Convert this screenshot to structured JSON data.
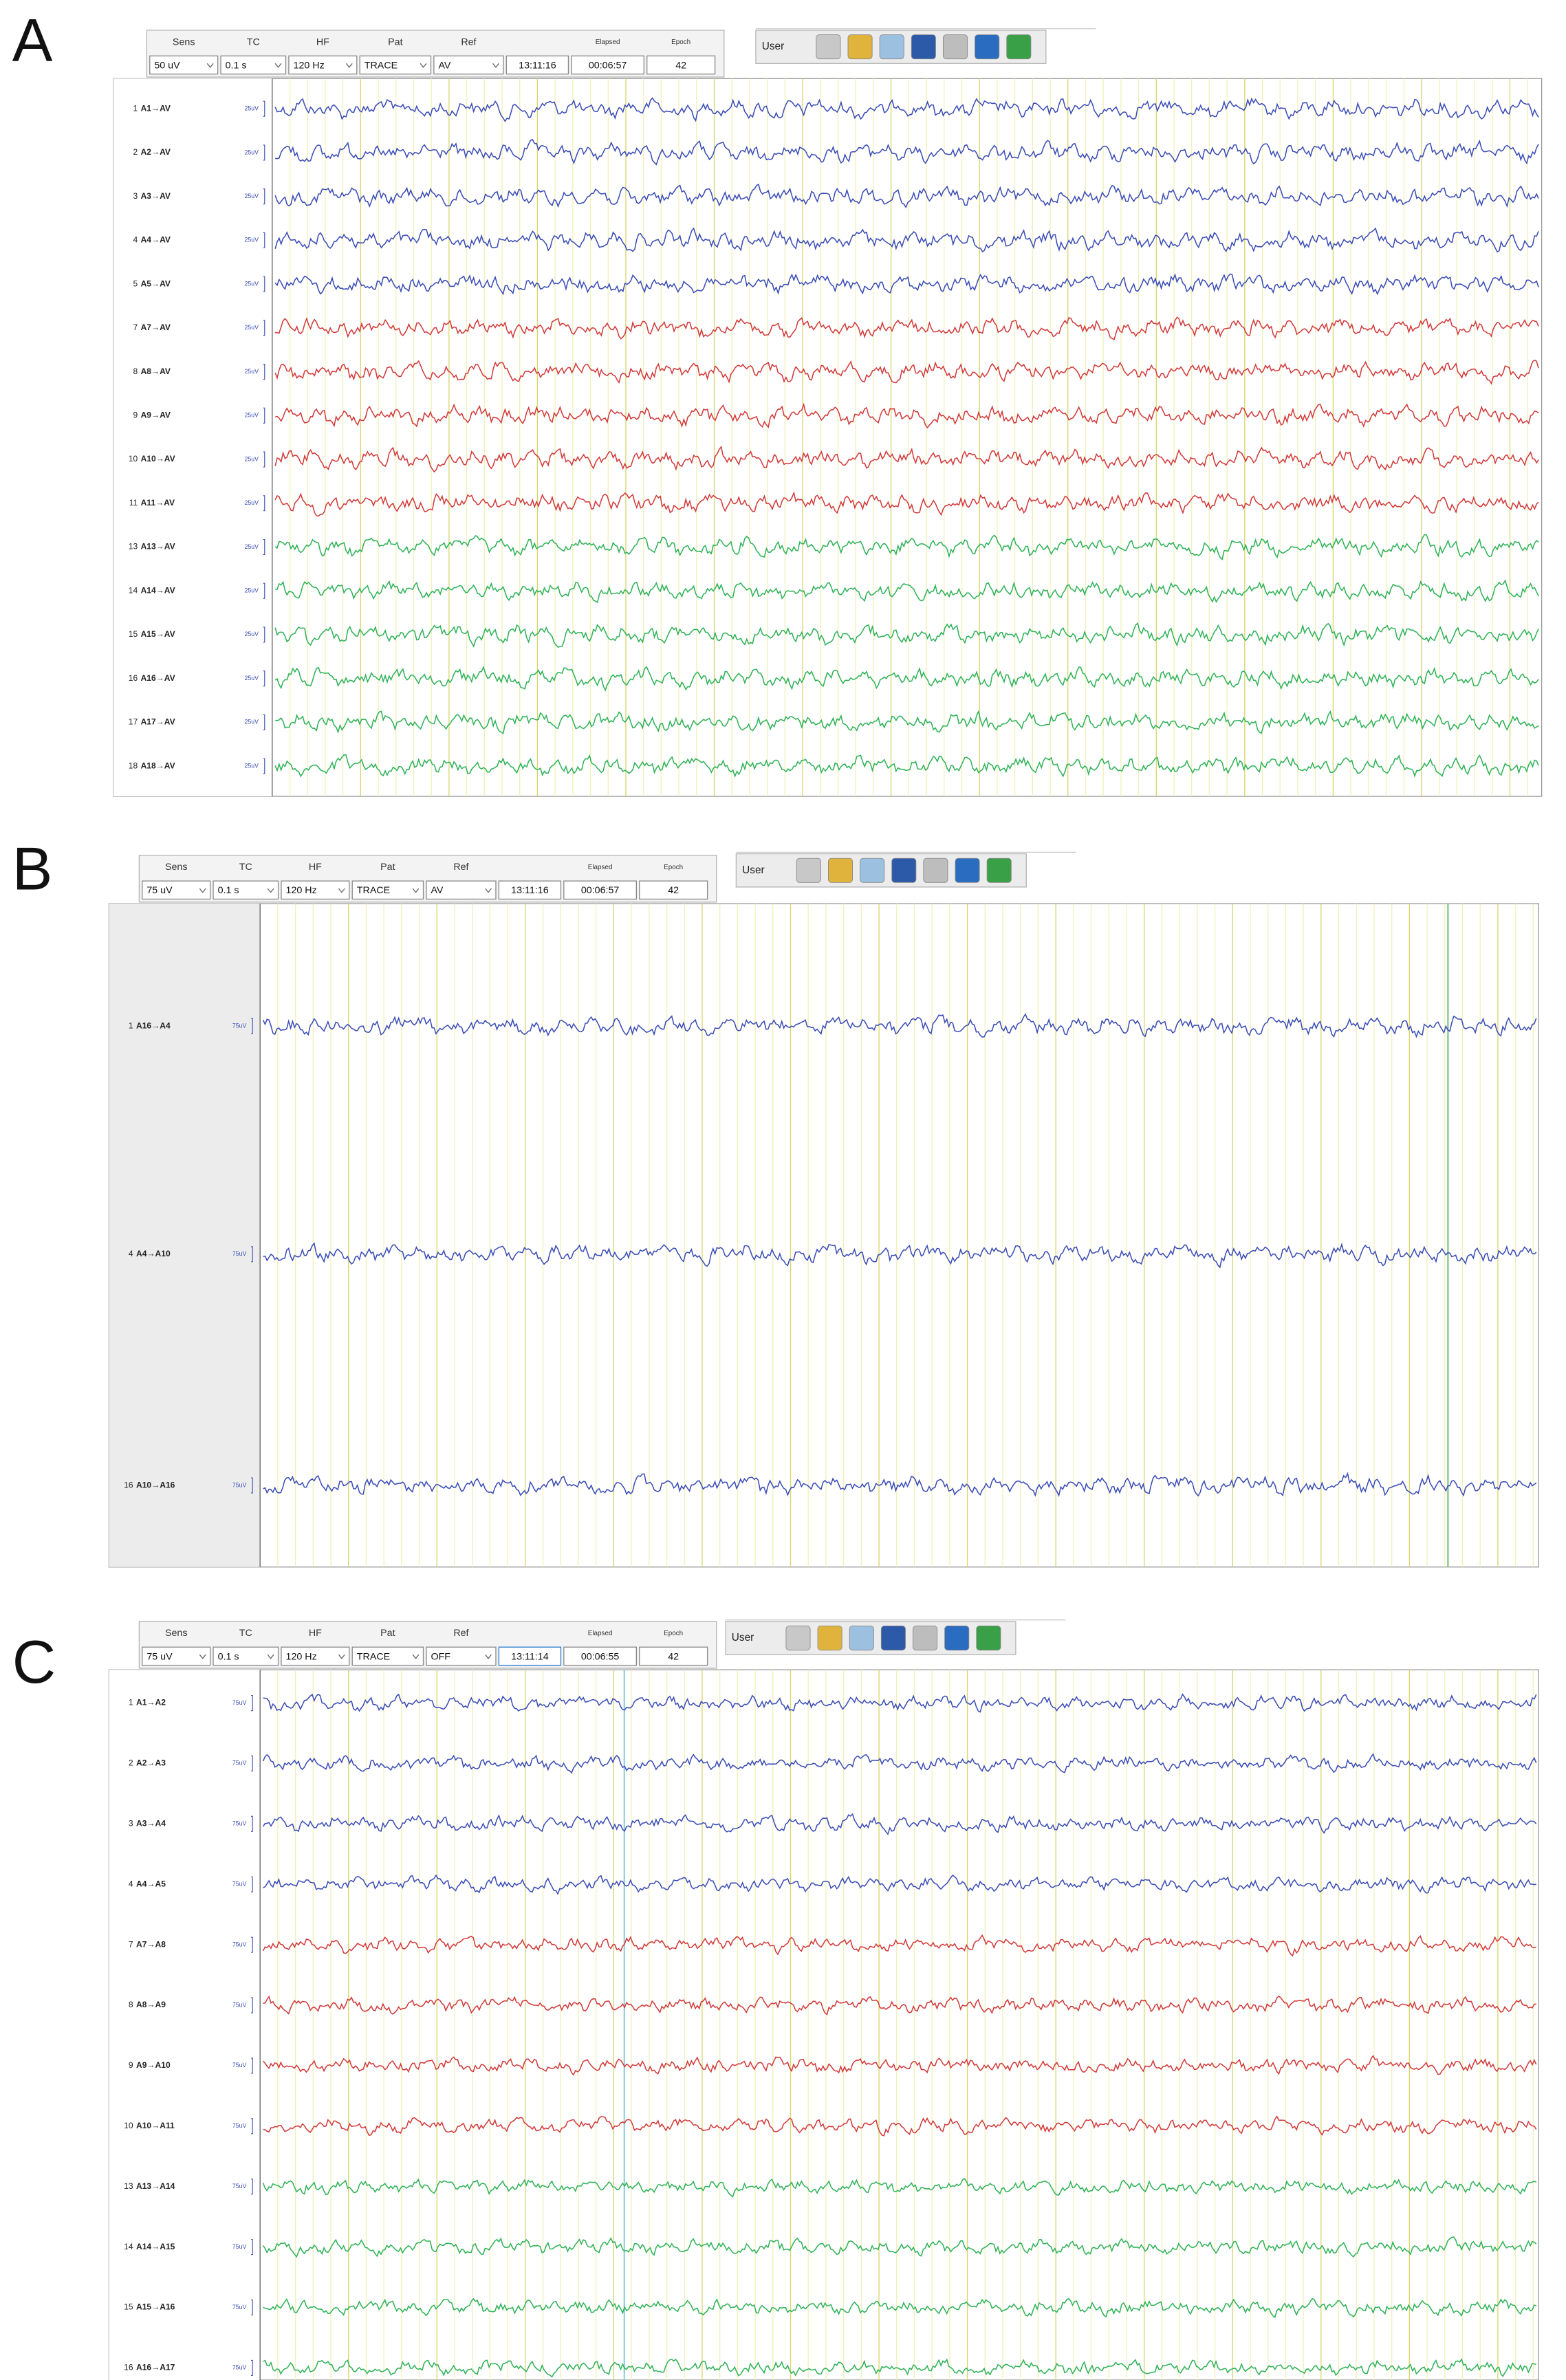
{
  "panels": [
    {
      "label": "A",
      "toolbar": {
        "fields": [
          {
            "header": "Sens",
            "value": "50 uV"
          },
          {
            "header": "TC",
            "value": "0.1 s"
          },
          {
            "header": "HF",
            "value": "120 Hz"
          },
          {
            "header": "Pat",
            "value": "TRACE"
          },
          {
            "header": "Ref",
            "value": "AV"
          },
          {
            "value": "13:11:16"
          },
          {
            "header": "Elapsed",
            "value": "00:06:57"
          },
          {
            "header": "Epoch",
            "value": "42"
          }
        ],
        "user": "User"
      },
      "channels": [
        {
          "number": "1",
          "label": "A1→AV",
          "scale": "25uV",
          "color": "#3b4db5"
        },
        {
          "number": "2",
          "label": "A2→AV",
          "scale": "25uV",
          "color": "#3b4db5"
        },
        {
          "number": "3",
          "label": "A3→AV",
          "scale": "25uV",
          "color": "#3b4db5"
        },
        {
          "number": "4",
          "label": "A4→AV",
          "scale": "25uV",
          "color": "#3b4db5"
        },
        {
          "number": "5",
          "label": "A5→AV",
          "scale": "25uV",
          "color": "#3b4db5"
        },
        {
          "number": "7",
          "label": "A7→AV",
          "scale": "25uV",
          "color": "#d23a3a"
        },
        {
          "number": "8",
          "label": "A8→AV",
          "scale": "25uV",
          "color": "#d23a3a"
        },
        {
          "number": "9",
          "label": "A9→AV",
          "scale": "25uV",
          "color": "#d23a3a"
        },
        {
          "number": "10",
          "label": "A10→AV",
          "scale": "25uV",
          "color": "#d23a3a"
        },
        {
          "number": "11",
          "label": "A11→AV",
          "scale": "25uV",
          "color": "#d23a3a"
        },
        {
          "number": "13",
          "label": "A13→AV",
          "scale": "25uV",
          "color": "#2fb257"
        },
        {
          "number": "14",
          "label": "A14→AV",
          "scale": "25uV",
          "color": "#2fb257"
        },
        {
          "number": "15",
          "label": "A15→AV",
          "scale": "25uV",
          "color": "#2fb257"
        },
        {
          "number": "16",
          "label": "A16→AV",
          "scale": "25uV",
          "color": "#2fb257"
        },
        {
          "number": "17",
          "label": "A17→AV",
          "scale": "25uV",
          "color": "#2fb257"
        },
        {
          "number": "18",
          "label": "A18→AV",
          "scale": "25uV",
          "color": "#2fb257"
        }
      ]
    },
    {
      "label": "B",
      "toolbar": {
        "fields": [
          {
            "header": "Sens",
            "value": "75 uV"
          },
          {
            "header": "TC",
            "value": "0.1 s"
          },
          {
            "header": "HF",
            "value": "120 Hz"
          },
          {
            "header": "Pat",
            "value": "TRACE"
          },
          {
            "header": "Ref",
            "value": "AV"
          },
          {
            "value": "13:11:16"
          },
          {
            "header": "Elapsed",
            "value": "00:06:57"
          },
          {
            "header": "Epoch",
            "value": "42"
          }
        ],
        "user": "User"
      },
      "channels": [
        {
          "number": "1",
          "label": "A16→A4",
          "scale": "75uV",
          "color": "#3b4db5"
        },
        {
          "number": "4",
          "label": "A4→A10",
          "scale": "75uV",
          "color": "#3b4db5"
        },
        {
          "number": "16",
          "label": "A10→A16",
          "scale": "75uV",
          "color": "#3b4db5"
        }
      ]
    },
    {
      "label": "C",
      "toolbar": {
        "fields": [
          {
            "header": "Sens",
            "value": "75 uV"
          },
          {
            "header": "TC",
            "value": "0.1 s"
          },
          {
            "header": "HF",
            "value": "120 Hz"
          },
          {
            "header": "Pat",
            "value": "TRACE"
          },
          {
            "header": "Ref",
            "value": "OFF"
          },
          {
            "value": "13:11:14"
          },
          {
            "header": "Elapsed",
            "value": "00:06:55"
          },
          {
            "header": "Epoch",
            "value": "42"
          }
        ],
        "user": "User"
      },
      "channels": [
        {
          "number": "1",
          "label": "A1→A2",
          "scale": "75uV",
          "color": "#3b4db5"
        },
        {
          "number": "2",
          "label": "A2→A3",
          "scale": "75uV",
          "color": "#3b4db5"
        },
        {
          "number": "3",
          "label": "A3→A4",
          "scale": "75uV",
          "color": "#3b4db5"
        },
        {
          "number": "4",
          "label": "A4→A5",
          "scale": "75uV",
          "color": "#3b4db5"
        },
        {
          "number": "7",
          "label": "A7→A8",
          "scale": "75uV",
          "color": "#d23a3a"
        },
        {
          "number": "8",
          "label": "A8→A9",
          "scale": "75uV",
          "color": "#d23a3a"
        },
        {
          "number": "9",
          "label": "A9→A10",
          "scale": "75uV",
          "color": "#d23a3a"
        },
        {
          "number": "10",
          "label": "A10→A11",
          "scale": "75uV",
          "color": "#d23a3a"
        },
        {
          "number": "13",
          "label": "A13→A14",
          "scale": "75uV",
          "color": "#2fb257"
        },
        {
          "number": "14",
          "label": "A14→A15",
          "scale": "75uV",
          "color": "#2fb257"
        },
        {
          "number": "15",
          "label": "A15→A16",
          "scale": "75uV",
          "color": "#2fb257"
        },
        {
          "number": "16",
          "label": "A16→A17",
          "scale": "75uV",
          "color": "#2fb257"
        }
      ]
    }
  ]
}
